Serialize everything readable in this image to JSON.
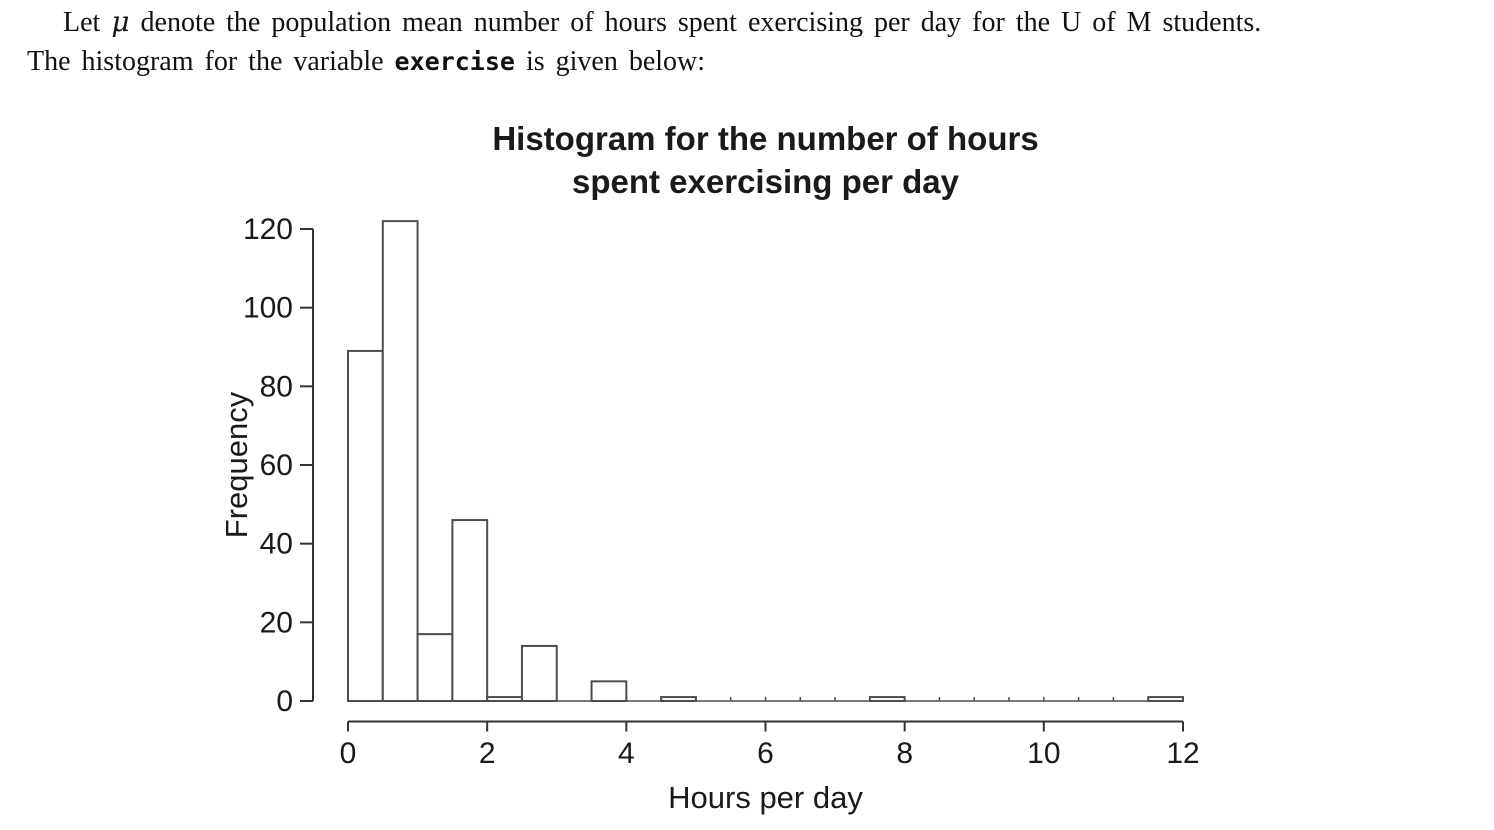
{
  "problem": {
    "line1_pre": "Let ",
    "mu_symbol": "μ",
    "line1_post": " denote the population mean number of hours spent exercising per day for the U of M students.",
    "line2_pre": "The histogram for the variable ",
    "line2_code": "exercise",
    "line2_post": " is given below:"
  },
  "chart_data": {
    "type": "bar",
    "title": "Histogram for the number of hours spent exercising per day",
    "title_lines": [
      "Histogram for the number of hours",
      "spent exercising per day"
    ],
    "xlabel": "Hours per day",
    "ylabel": "Frequency",
    "xlim": [
      0,
      12
    ],
    "ylim": [
      0,
      120
    ],
    "x_ticks": [
      0,
      2,
      4,
      6,
      8,
      10,
      12
    ],
    "y_ticks": [
      0,
      20,
      40,
      60,
      80,
      100,
      120
    ],
    "bin_start": 0,
    "bin_width": 0.5,
    "counts": [
      89,
      122,
      17,
      46,
      1,
      14,
      0,
      5,
      0,
      1,
      0,
      0,
      0,
      0,
      0,
      1,
      0,
      0,
      0,
      0,
      0,
      0,
      0,
      1
    ],
    "grid": false,
    "legend_position": "none",
    "colors": {
      "bar_fill": "#ffffff",
      "bar_stroke": "#4d4d4d",
      "axis_color": "#333333",
      "text_color": "#1a1a1a"
    }
  }
}
